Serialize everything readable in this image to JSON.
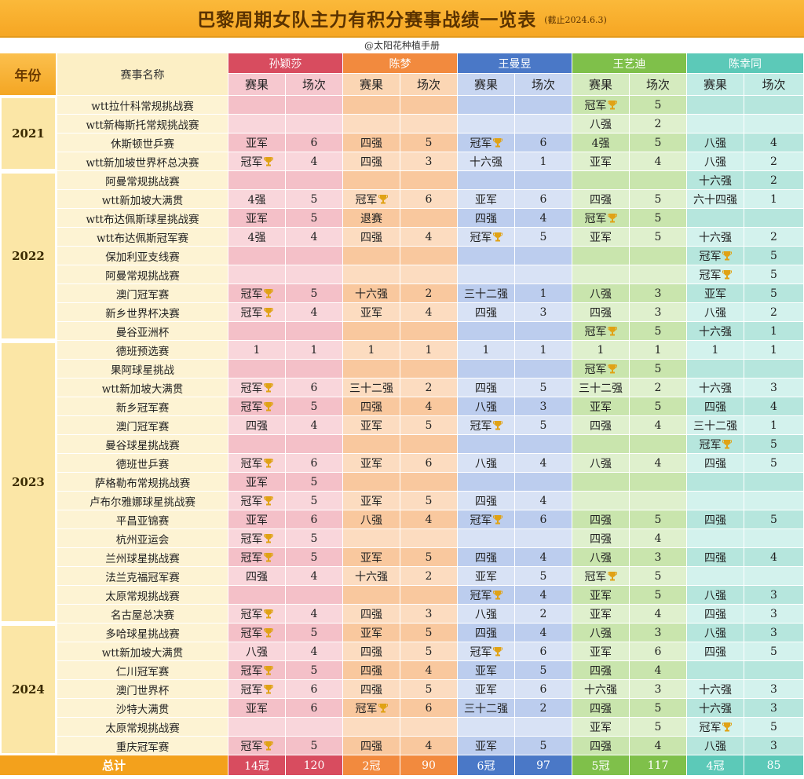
{
  "title": "巴黎周期女队主力有积分赛事战绩一览表",
  "date_note": "(截止2024.6.3)",
  "author": "@太阳花种植手册",
  "headers": {
    "year": "年份",
    "event": "赛事名称",
    "result": "赛果",
    "rounds": "场次"
  },
  "players": [
    {
      "name": "孙颖莎",
      "key": "sun"
    },
    {
      "name": "陈梦",
      "key": "chen"
    },
    {
      "name": "王曼昱",
      "key": "wang"
    },
    {
      "name": "王艺迪",
      "key": "wyd"
    },
    {
      "name": "陈幸同",
      "key": "cxt"
    }
  ],
  "icons": {
    "trophy": "trophy-icon"
  },
  "years": [
    {
      "year": "2021",
      "count": 4
    },
    {
      "year": "2022",
      "count": 9
    },
    {
      "year": "2023",
      "count": 15
    },
    {
      "year": "2024",
      "count": 7
    }
  ],
  "rows": [
    {
      "event": "wtt拉什科常规挑战赛",
      "cells": [
        [
          "",
          ""
        ],
        [
          "",
          ""
        ],
        [
          "",
          ""
        ],
        [
          "冠军",
          "5"
        ],
        [
          "",
          ""
        ]
      ]
    },
    {
      "event": "wtt新梅斯托常规挑战赛",
      "cells": [
        [
          "",
          ""
        ],
        [
          "",
          ""
        ],
        [
          "",
          ""
        ],
        [
          "八强",
          "2"
        ],
        [
          "",
          ""
        ]
      ]
    },
    {
      "event": "休斯顿世乒赛",
      "cells": [
        [
          "亚军",
          "6"
        ],
        [
          "四强",
          "5"
        ],
        [
          "冠军",
          "6"
        ],
        [
          "4强",
          "5"
        ],
        [
          "八强",
          "4"
        ]
      ]
    },
    {
      "event": "wtt新加坡世界杯总决赛",
      "cells": [
        [
          "冠军",
          "4"
        ],
        [
          "四强",
          "3"
        ],
        [
          "十六强",
          "1"
        ],
        [
          "亚军",
          "4"
        ],
        [
          "八强",
          "2"
        ]
      ]
    },
    {
      "event": "阿曼常规挑战赛",
      "cells": [
        [
          "",
          ""
        ],
        [
          "",
          ""
        ],
        [
          "",
          ""
        ],
        [
          "",
          ""
        ],
        [
          "十六强",
          "2"
        ]
      ]
    },
    {
      "event": "wtt新加坡大满贯",
      "cells": [
        [
          "4强",
          "5"
        ],
        [
          "冠军",
          "6"
        ],
        [
          "亚军",
          "6"
        ],
        [
          "四强",
          "5"
        ],
        [
          "六十四强",
          "1"
        ]
      ]
    },
    {
      "event": "wtt布达佩斯球星挑战赛",
      "cells": [
        [
          "亚军",
          "5"
        ],
        [
          "退赛",
          ""
        ],
        [
          "四强",
          "4"
        ],
        [
          "冠军",
          "5"
        ],
        [
          "",
          ""
        ]
      ]
    },
    {
      "event": "wtt布达佩斯冠军赛",
      "cells": [
        [
          "4强",
          "4"
        ],
        [
          "四强",
          "4"
        ],
        [
          "冠军",
          "5"
        ],
        [
          "亚军",
          "5"
        ],
        [
          "十六强",
          "2"
        ]
      ]
    },
    {
      "event": "保加利亚支线赛",
      "cells": [
        [
          "",
          ""
        ],
        [
          "",
          ""
        ],
        [
          "",
          ""
        ],
        [
          "",
          ""
        ],
        [
          "冠军",
          "5"
        ]
      ]
    },
    {
      "event": "阿曼常规挑战赛",
      "cells": [
        [
          "",
          ""
        ],
        [
          "",
          ""
        ],
        [
          "",
          ""
        ],
        [
          "",
          ""
        ],
        [
          "冠军",
          "5"
        ]
      ]
    },
    {
      "event": "澳门冠军赛",
      "cells": [
        [
          "冠军",
          "5"
        ],
        [
          "十六强",
          "2"
        ],
        [
          "三十二强",
          "1"
        ],
        [
          "八强",
          "3"
        ],
        [
          "亚军",
          "5"
        ]
      ]
    },
    {
      "event": "新乡世界杯决赛",
      "cells": [
        [
          "冠军",
          "4"
        ],
        [
          "亚军",
          "4"
        ],
        [
          "四强",
          "3"
        ],
        [
          "四强",
          "3"
        ],
        [
          "八强",
          "2"
        ]
      ]
    },
    {
      "event": "曼谷亚洲杯",
      "cells": [
        [
          "",
          ""
        ],
        [
          "",
          ""
        ],
        [
          "",
          ""
        ],
        [
          "冠军",
          "5"
        ],
        [
          "十六强",
          "1"
        ]
      ]
    },
    {
      "event": "德班预选赛",
      "cells": [
        [
          "1",
          "1"
        ],
        [
          "1",
          "1"
        ],
        [
          "1",
          "1"
        ],
        [
          "1",
          "1"
        ],
        [
          "1",
          "1"
        ]
      ]
    },
    {
      "event": "果阿球星挑战",
      "cells": [
        [
          "",
          ""
        ],
        [
          "",
          ""
        ],
        [
          "",
          ""
        ],
        [
          "冠军",
          "5"
        ],
        [
          "",
          ""
        ]
      ]
    },
    {
      "event": "wtt新加坡大满贯",
      "cells": [
        [
          "冠军",
          "6"
        ],
        [
          "三十二强",
          "2"
        ],
        [
          "四强",
          "5"
        ],
        [
          "三十二强",
          "2"
        ],
        [
          "十六强",
          "3"
        ]
      ]
    },
    {
      "event": "新乡冠军赛",
      "cells": [
        [
          "冠军",
          "5"
        ],
        [
          "四强",
          "4"
        ],
        [
          "八强",
          "3"
        ],
        [
          "亚军",
          "5"
        ],
        [
          "四强",
          "4"
        ]
      ]
    },
    {
      "event": "澳门冠军赛",
      "cells": [
        [
          "四强",
          "4"
        ],
        [
          "亚军",
          "5"
        ],
        [
          "冠军",
          "5"
        ],
        [
          "四强",
          "4"
        ],
        [
          "三十二强",
          "1"
        ]
      ]
    },
    {
      "event": "曼谷球星挑战赛",
      "cells": [
        [
          "",
          ""
        ],
        [
          "",
          ""
        ],
        [
          "",
          ""
        ],
        [
          "",
          ""
        ],
        [
          "冠军",
          "5"
        ]
      ]
    },
    {
      "event": "德班世乒赛",
      "cells": [
        [
          "冠军",
          "6"
        ],
        [
          "亚军",
          "6"
        ],
        [
          "八强",
          "4"
        ],
        [
          "八强",
          "4"
        ],
        [
          "四强",
          "5"
        ]
      ]
    },
    {
      "event": "萨格勒布常规挑战赛",
      "cells": [
        [
          "亚军",
          "5"
        ],
        [
          "",
          ""
        ],
        [
          "",
          ""
        ],
        [
          "",
          ""
        ],
        [
          "",
          ""
        ]
      ]
    },
    {
      "event": "卢布尔雅娜球星挑战赛",
      "cells": [
        [
          "冠军",
          "5"
        ],
        [
          "亚军",
          "5"
        ],
        [
          "四强",
          "4"
        ],
        [
          "",
          ""
        ],
        [
          "",
          ""
        ]
      ]
    },
    {
      "event": "平昌亚锦赛",
      "cells": [
        [
          "亚军",
          "6"
        ],
        [
          "八强",
          "4"
        ],
        [
          "冠军",
          "6"
        ],
        [
          "四强",
          "5"
        ],
        [
          "四强",
          "5"
        ]
      ]
    },
    {
      "event": "杭州亚运会",
      "cells": [
        [
          "冠军",
          "5"
        ],
        [
          "",
          ""
        ],
        [
          "",
          ""
        ],
        [
          "四强",
          "4"
        ],
        [
          "",
          ""
        ]
      ]
    },
    {
      "event": "兰州球星挑战赛",
      "cells": [
        [
          "冠军",
          "5"
        ],
        [
          "亚军",
          "5"
        ],
        [
          "四强",
          "4"
        ],
        [
          "八强",
          "3"
        ],
        [
          "四强",
          "4"
        ]
      ]
    },
    {
      "event": "法兰克福冠军赛",
      "cells": [
        [
          "四强",
          "4"
        ],
        [
          "十六强",
          "2"
        ],
        [
          "亚军",
          "5"
        ],
        [
          "冠军",
          "5"
        ],
        [
          "",
          ""
        ]
      ]
    },
    {
      "event": "太原常规挑战赛",
      "cells": [
        [
          "",
          ""
        ],
        [
          "",
          ""
        ],
        [
          "冠军",
          "4"
        ],
        [
          "亚军",
          "5"
        ],
        [
          "八强",
          "3"
        ]
      ]
    },
    {
      "event": "名古屋总决赛",
      "cells": [
        [
          "冠军",
          "4"
        ],
        [
          "四强",
          "3"
        ],
        [
          "八强",
          "2"
        ],
        [
          "亚军",
          "4"
        ],
        [
          "四强",
          "3"
        ]
      ]
    },
    {
      "event": "多哈球星挑战赛",
      "cells": [
        [
          "冠军",
          "5"
        ],
        [
          "亚军",
          "5"
        ],
        [
          "四强",
          "4"
        ],
        [
          "八强",
          "3"
        ],
        [
          "八强",
          "3"
        ]
      ]
    },
    {
      "event": "wtt新加坡大满贯",
      "cells": [
        [
          "八强",
          "4"
        ],
        [
          "四强",
          "5"
        ],
        [
          "冠军",
          "6"
        ],
        [
          "亚军",
          "6"
        ],
        [
          "四强",
          "5"
        ]
      ]
    },
    {
      "event": "仁川冠军赛",
      "cells": [
        [
          "冠军",
          "5"
        ],
        [
          "四强",
          "4"
        ],
        [
          "亚军",
          "5"
        ],
        [
          "四强",
          "4"
        ],
        [
          "",
          ""
        ]
      ]
    },
    {
      "event": "澳门世界杯",
      "cells": [
        [
          "冠军",
          "6"
        ],
        [
          "四强",
          "5"
        ],
        [
          "亚军",
          "6"
        ],
        [
          "十六强",
          "3"
        ],
        [
          "十六强",
          "3"
        ]
      ]
    },
    {
      "event": "沙特大满贯",
      "cells": [
        [
          "亚军",
          "6"
        ],
        [
          "冠军",
          "6"
        ],
        [
          "三十二强",
          "2"
        ],
        [
          "四强",
          "5"
        ],
        [
          "十六强",
          "3"
        ]
      ]
    },
    {
      "event": "太原常规挑战赛",
      "cells": [
        [
          "",
          ""
        ],
        [
          "",
          ""
        ],
        [
          "",
          ""
        ],
        [
          "亚军",
          "5"
        ],
        [
          "冠军",
          "5"
        ]
      ]
    },
    {
      "event": "重庆冠军赛",
      "cells": [
        [
          "冠军",
          "5"
        ],
        [
          "四强",
          "4"
        ],
        [
          "亚军",
          "5"
        ],
        [
          "四强",
          "4"
        ],
        [
          "八强",
          "3"
        ]
      ]
    }
  ],
  "total": {
    "label": "总计",
    "cells": [
      [
        "14冠",
        "120"
      ],
      [
        "2冠",
        "90"
      ],
      [
        "6冠",
        "97"
      ],
      [
        "5冠",
        "117"
      ],
      [
        "4冠",
        "85"
      ]
    ]
  },
  "colors": {
    "sun": "#d84c5f",
    "chen": "#f28a3e",
    "wang": "#4a78c7",
    "wyd": "#7fc04a",
    "cxt": "#5cc9b8",
    "title": "#f6a623",
    "trophy": "#e0a215"
  }
}
